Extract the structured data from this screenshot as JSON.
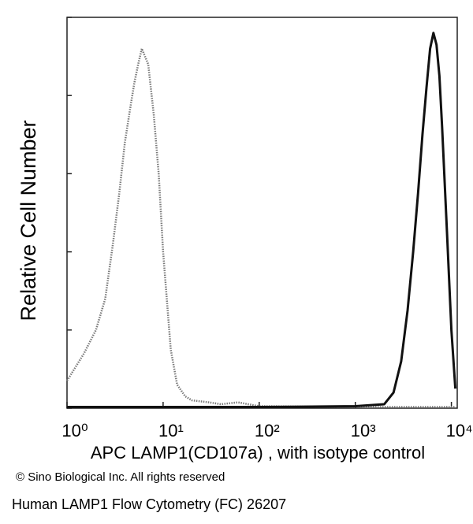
{
  "chart_data": {
    "type": "line",
    "y_label": "Relative Cell Number",
    "x_label": "APC LAMP1(CD107a) , with isotype control",
    "copyright": "© Sino Biological Inc. All rights reserved",
    "caption": "Human LAMP1 Flow Cytometry (FC) 26207",
    "x_scale": "log",
    "xlim": [
      1,
      11500
    ],
    "xticks": [
      {
        "value": 1,
        "label": "10⁰"
      },
      {
        "value": 10,
        "label": "10¹"
      },
      {
        "value": 100,
        "label": "10²"
      },
      {
        "value": 1000,
        "label": "10³"
      },
      {
        "value": 10000,
        "label": "10⁴"
      }
    ],
    "ylim": [
      0,
      100
    ],
    "yticks": [
      0,
      20,
      40,
      60,
      80,
      100
    ],
    "series": [
      {
        "name": "isotype control",
        "color": "#7a7a7a",
        "dashed": true,
        "x": [
          1,
          1.5,
          2,
          2.5,
          3,
          3.5,
          4,
          4.5,
          5,
          5.5,
          6,
          7,
          8,
          9,
          10,
          12,
          14,
          17,
          20,
          30,
          40,
          60,
          100,
          1000,
          11000
        ],
        "values": [
          7,
          14,
          20,
          28,
          42,
          55,
          68,
          76,
          83,
          88,
          92,
          88,
          75,
          60,
          40,
          15,
          6,
          3,
          2,
          1.5,
          1,
          1.5,
          0.5,
          0.3,
          0.3
        ]
      },
      {
        "name": "APC LAMP1(CD107a)",
        "color": "#111111",
        "dashed": false,
        "x": [
          1,
          100,
          1000,
          2000,
          2500,
          3000,
          3500,
          4000,
          4500,
          5000,
          5500,
          6000,
          6500,
          7000,
          7500,
          8000,
          9000,
          10000,
          11000
        ],
        "values": [
          0.3,
          0.3,
          0.5,
          1,
          4,
          12,
          25,
          40,
          55,
          70,
          82,
          92,
          96,
          93,
          85,
          72,
          45,
          20,
          5
        ]
      }
    ]
  }
}
